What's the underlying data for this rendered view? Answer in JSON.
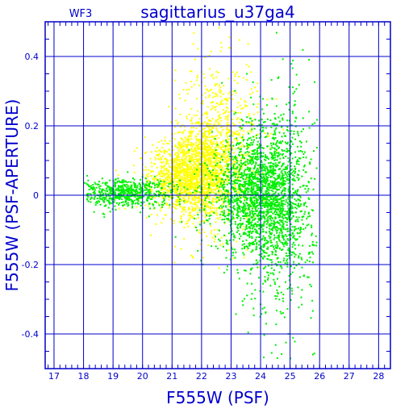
{
  "chart_data": {
    "type": "scatter",
    "title": "sagittarius_u37ga4",
    "chip_label": "WF3",
    "xlabel": "F555W (PSF)",
    "ylabel": "F555W (PSF-APERTURE)",
    "xlim": [
      16.7,
      28.4
    ],
    "ylim": [
      -0.5,
      0.5
    ],
    "x_ticks": [
      17,
      18,
      19,
      20,
      21,
      22,
      23,
      24,
      25,
      26,
      27,
      28
    ],
    "y_ticks": [
      -0.4,
      -0.2,
      0,
      0.2,
      0.4
    ],
    "y_tick_labels": [
      "-0.4",
      "-0.2",
      "0",
      "0.2",
      "0.4"
    ],
    "grid": true,
    "legend": "none",
    "series": [
      {
        "color": "#ffff00",
        "distribution": [
          {
            "x_center": 21.9,
            "x_spread": 0.55,
            "y_center": 0.06,
            "y_spread": 0.06,
            "weight": 0.45
          },
          {
            "x_center": 22.5,
            "x_spread": 0.7,
            "y_center": 0.14,
            "y_spread": 0.12,
            "weight": 0.35
          },
          {
            "x_center": 21.0,
            "x_spread": 0.6,
            "y_center": 0.05,
            "y_spread": 0.05,
            "weight": 0.2
          }
        ],
        "count": 2600
      },
      {
        "color": "#00ee00",
        "distribution": [
          {
            "x_center": 23.8,
            "x_spread": 0.75,
            "y_center": 0.0,
            "y_spread": 0.08,
            "weight": 0.5
          },
          {
            "x_center": 24.6,
            "x_spread": 0.6,
            "y_center": -0.02,
            "y_spread": 0.16,
            "weight": 0.3
          },
          {
            "x_center": 19.3,
            "x_spread": 0.9,
            "y_center": 0.01,
            "y_spread": 0.02,
            "weight": 0.2
          }
        ],
        "count": 3200
      }
    ]
  }
}
